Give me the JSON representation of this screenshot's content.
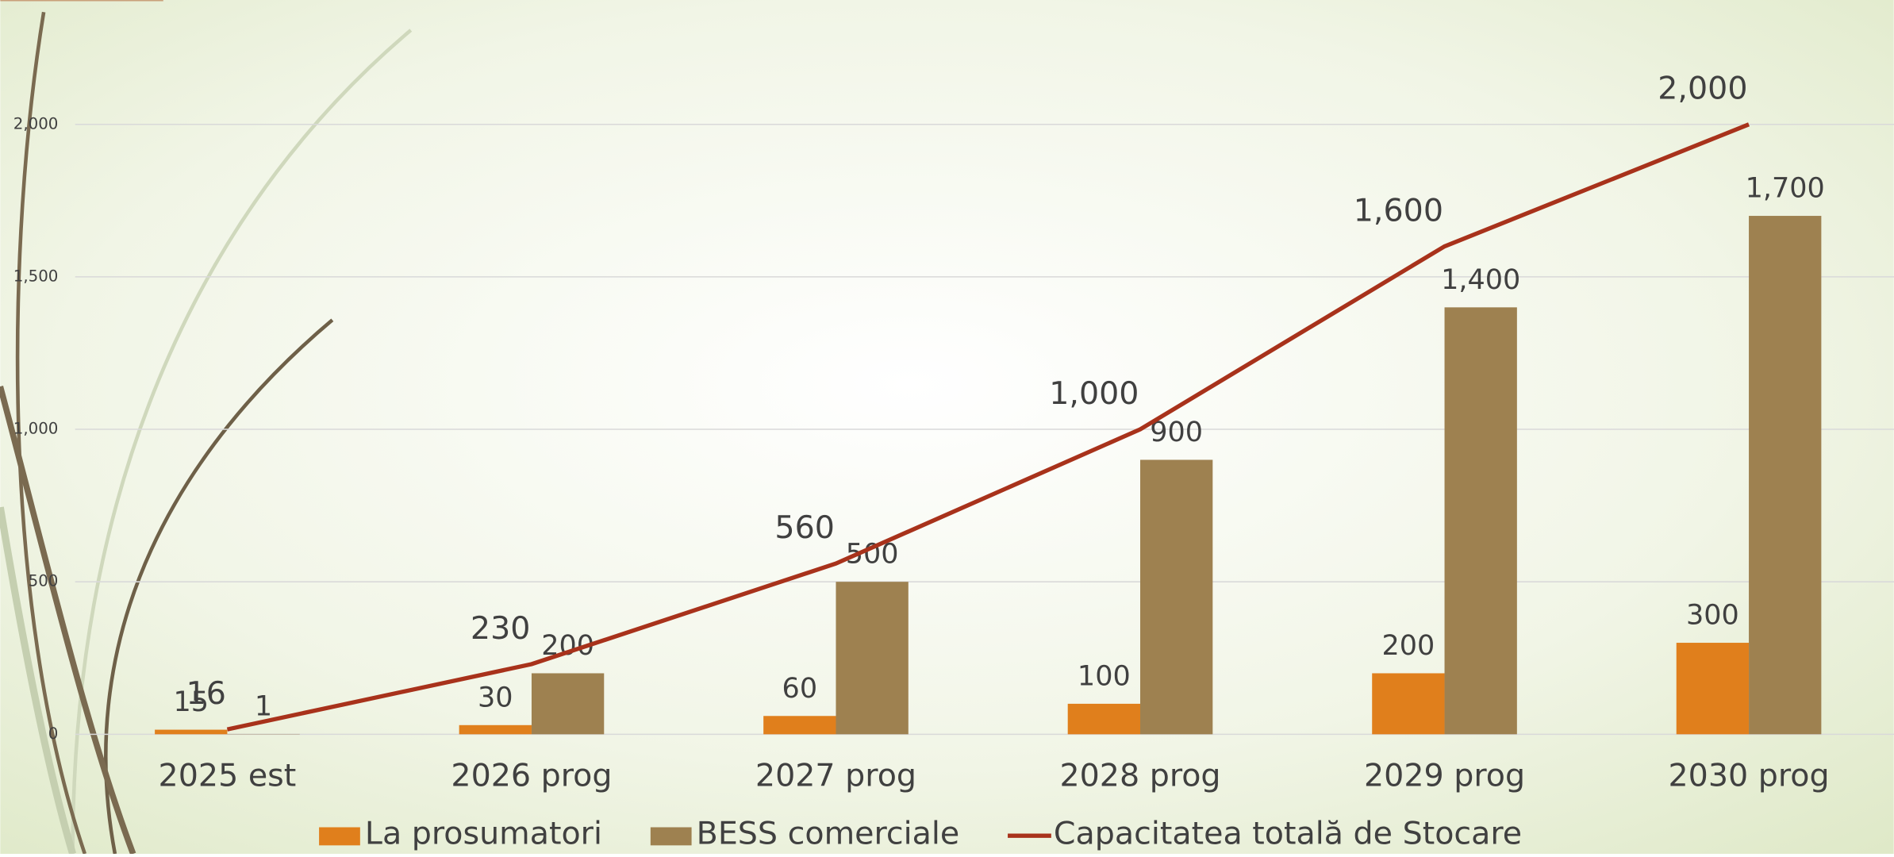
{
  "chart_data": {
    "type": "bar",
    "categories": [
      "2025 est",
      "2026 prog",
      "2027 prog",
      "2028 prog",
      "2029 prog",
      "2030 prog"
    ],
    "series": [
      {
        "name": "La prosumatori",
        "type": "bar",
        "color": "#e07f1c",
        "values": [
          15,
          30,
          60,
          100,
          200,
          300
        ]
      },
      {
        "name": "BESS comerciale",
        "type": "bar",
        "color": "#9e8150",
        "values": [
          1,
          200,
          500,
          900,
          1400,
          1700
        ],
        "value_labels": [
          "1",
          "200",
          "500",
          "900",
          "1,400",
          "1,700"
        ]
      },
      {
        "name": "Capacitatea totală de Stocare",
        "type": "line",
        "color": "#a8321b",
        "values": [
          16,
          230,
          560,
          1000,
          1600,
          2000
        ],
        "value_labels": [
          "16",
          "230",
          "560",
          "1,000",
          "1,600",
          "2,000"
        ]
      }
    ],
    "ylim": [
      0,
      2200
    ],
    "yticks": [
      0,
      500,
      {
        "value": 1000,
        "label": "1,000"
      },
      {
        "value": 1500,
        "label": "1,500"
      },
      {
        "value": 2000,
        "label": "2,000"
      }
    ],
    "grid": true,
    "legend": "bottom"
  }
}
